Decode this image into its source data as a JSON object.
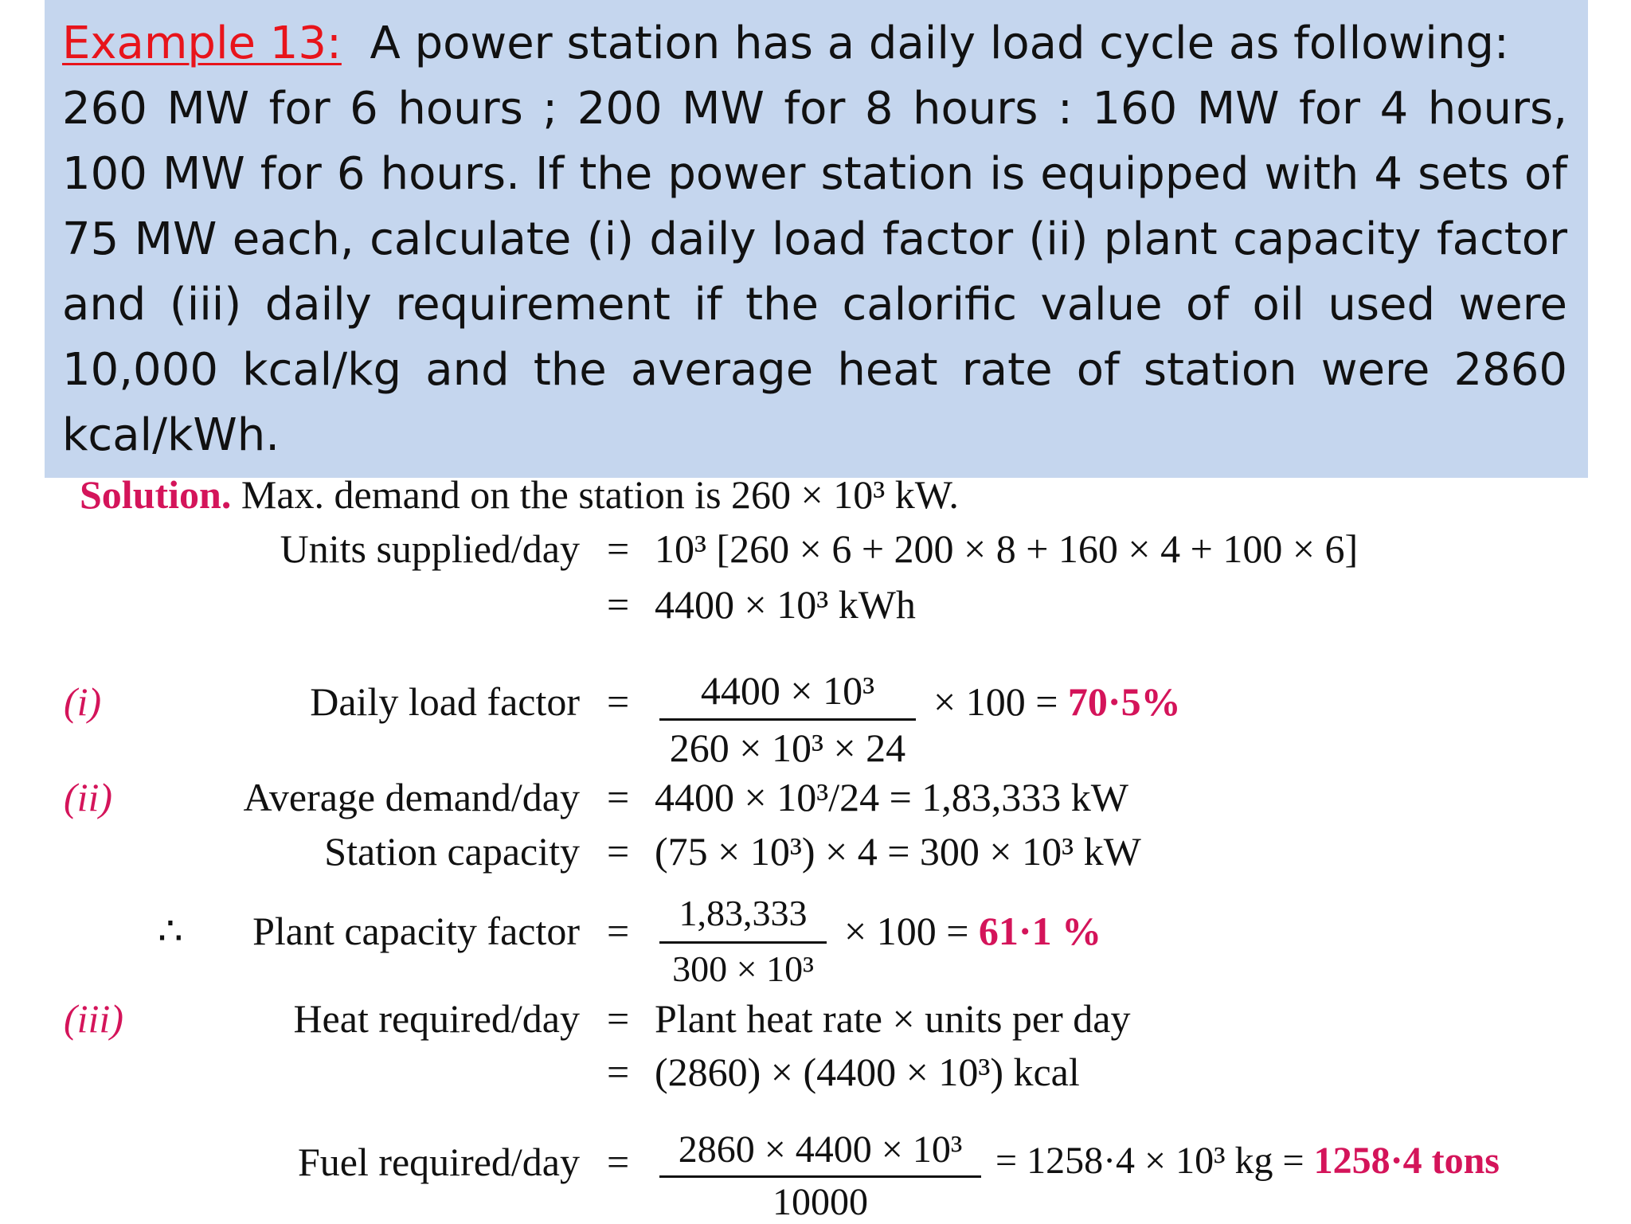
{
  "problem": {
    "label": "Example 13:",
    "line1": "A power station has a daily load cycle as following:",
    "body": "260 MW for 6 hours ; 200 MW for 8 hours : 160 MW for 4 hours, 100 MW for 6 hours. If the power station is equipped with 4 sets of 75 MW each, calculate (i) daily load factor (ii) plant capacity factor and (iii) daily requirement if the calorific value of oil used were 10,000 kcal/kg and the average heat rate of station were 2860 kcal/kWh."
  },
  "solution": {
    "heading": "Solution.",
    "intro": "Max. demand on the station is 260 × 10³ kW.",
    "units_label": "Units supplied/day",
    "units_expr": "10³ [260 × 6 + 200 × 8 + 160 × 4 + 100 × 6]",
    "units_result": "4400 × 10³ kWh",
    "i_index": "(i)",
    "load_factor_label": "Daily load factor",
    "load_factor_num": "4400 × 10³",
    "load_factor_den": "260 × 10³ × 24",
    "load_factor_tail": "× 100 =",
    "load_factor_result": "70·5%",
    "ii_index": "(ii)",
    "avg_demand_label": "Average demand/day",
    "avg_demand_expr": "4400 × 10³/24 = 1,83,333 kW",
    "capacity_label": "Station capacity",
    "capacity_expr": "(75 × 10³) × 4 = 300 × 10³ kW",
    "therefore": "∴",
    "pcf_label": "Plant capacity factor",
    "pcf_num": "1,83,333",
    "pcf_den": "300 × 10³",
    "pcf_tail": "× 100 =",
    "pcf_result": "61·1 %",
    "iii_index": "(iii)",
    "heat_label": "Heat required/day",
    "heat_expr1": "Plant heat rate × units per day",
    "heat_expr2": "(2860) × (4400 × 10³) kcal",
    "fuel_label": "Fuel required/day",
    "fuel_num": "2860 × 4400 × 10³",
    "fuel_den": "10000",
    "fuel_tail": "= 1258·4 × 10³ kg =",
    "fuel_result": "1258·4 tons",
    "equals": "="
  }
}
